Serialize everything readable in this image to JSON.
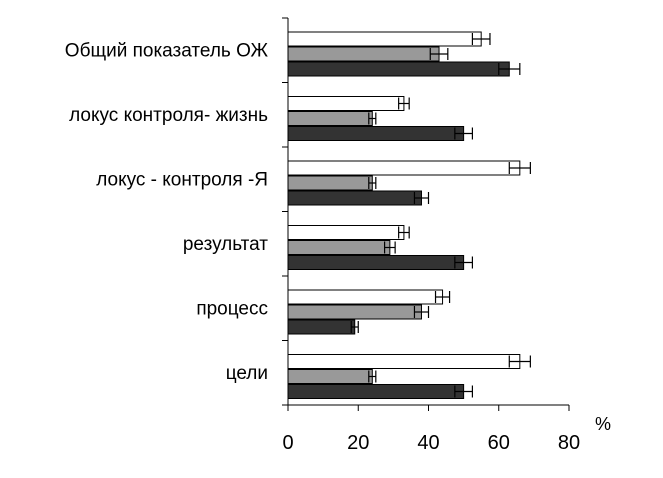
{
  "chart_data": {
    "type": "bar",
    "orientation": "horizontal",
    "categories": [
      "Общий показатель ОЖ",
      "локус контроля- жизнь",
      "локус - контроля -Я",
      "результат",
      "процесс",
      "цели"
    ],
    "series": [
      {
        "color": "#ffffff",
        "values": [
          55,
          33,
          66,
          33,
          44,
          66
        ],
        "errors": [
          2.5,
          1.5,
          3,
          1.5,
          2,
          3
        ]
      },
      {
        "color": "#999999",
        "values": [
          43,
          24,
          24,
          29,
          38,
          24
        ],
        "errors": [
          2.5,
          1,
          1,
          1.5,
          2,
          1
        ]
      },
      {
        "color": "#333333",
        "values": [
          63,
          50,
          38,
          50,
          19,
          50
        ],
        "errors": [
          3,
          2.5,
          2,
          2.5,
          1,
          2.5
        ]
      }
    ],
    "xlim": [
      0,
      80
    ],
    "xticks": [
      0,
      20,
      40,
      60,
      80
    ],
    "xunit": "%",
    "grid": false,
    "legend": "none"
  }
}
